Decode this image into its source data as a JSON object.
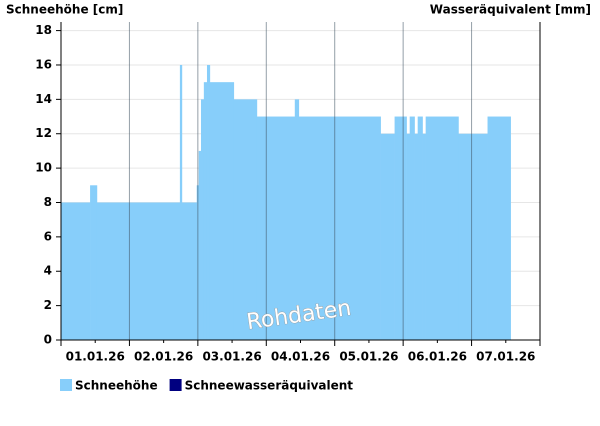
{
  "chart_data": {
    "type": "bar",
    "y_label": "Schneehöhe [cm]",
    "y2_label": "Wasseräquivalent [mm]",
    "watermark": "Rohdaten",
    "xlim": [
      0,
      168
    ],
    "xticks": [
      {
        "value": 12,
        "label": "01.01.26"
      },
      {
        "value": 36,
        "label": "02.01.26"
      },
      {
        "value": 60,
        "label": "03.01.26"
      },
      {
        "value": 84,
        "label": "04.01.26"
      },
      {
        "value": 108,
        "label": "05.01.26"
      },
      {
        "value": 132,
        "label": "06.01.26"
      },
      {
        "value": 156,
        "label": "07.01.26"
      }
    ],
    "ylim": [
      0,
      18.5
    ],
    "yticks": [
      0,
      2,
      4,
      6,
      8,
      10,
      12,
      14,
      16,
      18
    ],
    "grid": true,
    "legend": "bottom-left",
    "series": [
      {
        "name": "Schneehöhe",
        "color": "#87cefa",
        "bins": [
          0,
          10.2,
          12.6,
          41.7,
          42.4,
          47.6,
          48.3,
          49.1,
          50.1,
          51.2,
          52.2,
          60.6,
          68.7,
          82,
          83.4,
          112.1,
          117,
          121.2,
          122.3,
          124,
          125.1,
          126.8,
          127.9,
          139.4,
          149.6,
          157.7
        ],
        "values": [
          8,
          9,
          8,
          16,
          8,
          9,
          11,
          14,
          15,
          16,
          15,
          14,
          13,
          14,
          13,
          12,
          13,
          12,
          13,
          12,
          13,
          12,
          13,
          12,
          13
        ]
      },
      {
        "name": "Schneewasseräquivalent",
        "color": "#000080",
        "axis": "y2",
        "values": []
      }
    ]
  }
}
